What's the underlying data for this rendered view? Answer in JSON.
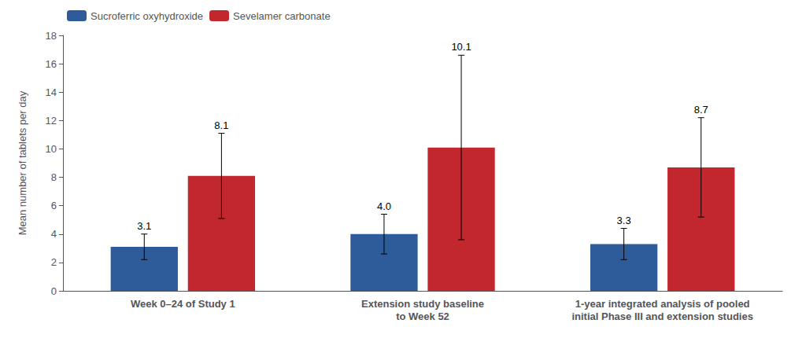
{
  "chart_data": {
    "type": "bar",
    "categories": [
      "Week 0–24 of Study 1",
      "Extension study baseline\nto Week 52",
      "1-year integrated analysis of pooled\ninitial Phase III and extension studies"
    ],
    "series": [
      {
        "name": "Sucroferric oxyhydroxide",
        "color": "#2E5B9A",
        "values": [
          3.1,
          4.0,
          3.3
        ],
        "value_labels": [
          "3.1",
          "4.0",
          "3.3"
        ],
        "err_low": [
          0.9,
          1.4,
          1.1
        ],
        "err_high": [
          0.9,
          1.4,
          1.1
        ]
      },
      {
        "name": "Sevelamer carbonate",
        "color": "#C1272D",
        "values": [
          8.1,
          10.1,
          8.7
        ],
        "err_low": [
          3.0,
          6.5,
          3.5
        ],
        "err_high": [
          3.0,
          6.5,
          3.5
        ]
      }
    ],
    "ylabel": "Mean number of tablets per day",
    "ylim": [
      0,
      18
    ],
    "yticks": [
      0,
      2,
      4,
      6,
      8,
      10,
      12,
      14,
      16,
      18
    ],
    "grid": false,
    "legend": "upper left",
    "data_labels": true
  }
}
